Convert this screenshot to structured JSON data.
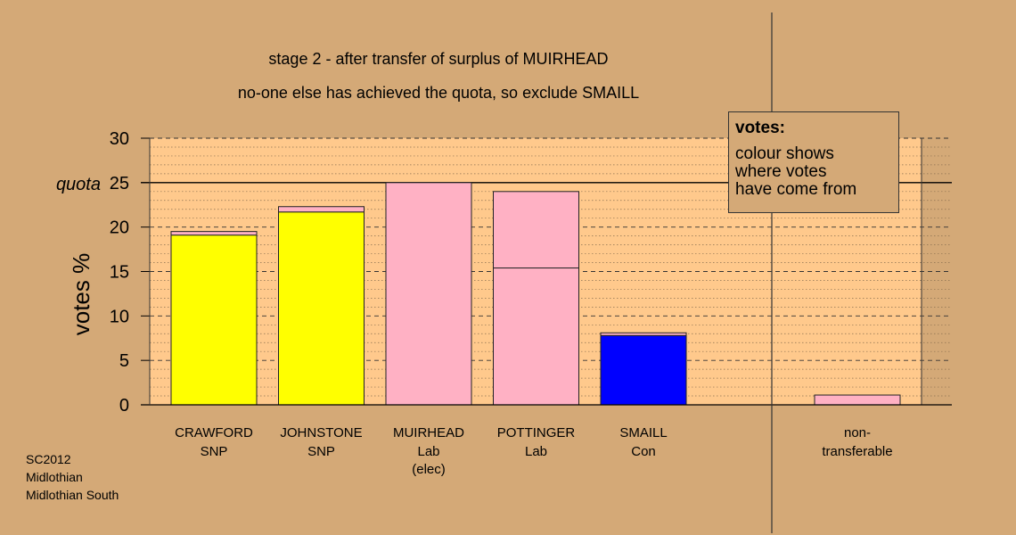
{
  "chart_data": {
    "type": "bar",
    "title": "stage 2 - after transfer of surplus of MUIRHEAD",
    "subtitle": "no-one else has achieved the quota, so exclude SMAILL",
    "ylabel": "votes %",
    "ylim": [
      0,
      30
    ],
    "yticks": [
      0,
      5,
      10,
      15,
      20,
      25,
      30
    ],
    "quota": {
      "label": "quota",
      "value": 25
    },
    "grid": true,
    "candidates": [
      {
        "name": "CRAWFORD",
        "party": "SNP",
        "note": "",
        "segments": [
          {
            "value": 19.1,
            "color": "#ffff00"
          },
          {
            "value": 0.4,
            "color": "#ffb1c4"
          }
        ]
      },
      {
        "name": "JOHNSTONE",
        "party": "SNP",
        "note": "",
        "segments": [
          {
            "value": 21.7,
            "color": "#ffff00"
          },
          {
            "value": 0.6,
            "color": "#ffb1c4"
          }
        ]
      },
      {
        "name": "MUIRHEAD",
        "party": "Lab",
        "note": "(elec)",
        "segments": [
          {
            "value": 25.0,
            "color": "#ffb1c4"
          }
        ]
      },
      {
        "name": "POTTINGER",
        "party": "Lab",
        "note": "",
        "segments": [
          {
            "value": 15.4,
            "color": "#ffb1c4"
          },
          {
            "value": 8.6,
            "color": "#ffb1c4"
          }
        ]
      },
      {
        "name": "SMAILL",
        "party": "Con",
        "note": "",
        "segments": [
          {
            "value": 7.8,
            "color": "#0000ff"
          },
          {
            "value": 0.3,
            "color": "#ffb1c4"
          }
        ]
      }
    ],
    "nontransferable": {
      "line1": "non-",
      "line2": "transferable",
      "value": 1.1,
      "color": "#ffb1c4"
    },
    "colors": {
      "background": "#d4a977",
      "plot_area": "#ffc98c"
    }
  },
  "legend": {
    "title": "votes:",
    "lines": [
      "colour shows",
      "where votes",
      "have come from"
    ]
  },
  "footer": {
    "lines": [
      "SC2012",
      "Midlothian",
      "Midlothian South"
    ]
  }
}
